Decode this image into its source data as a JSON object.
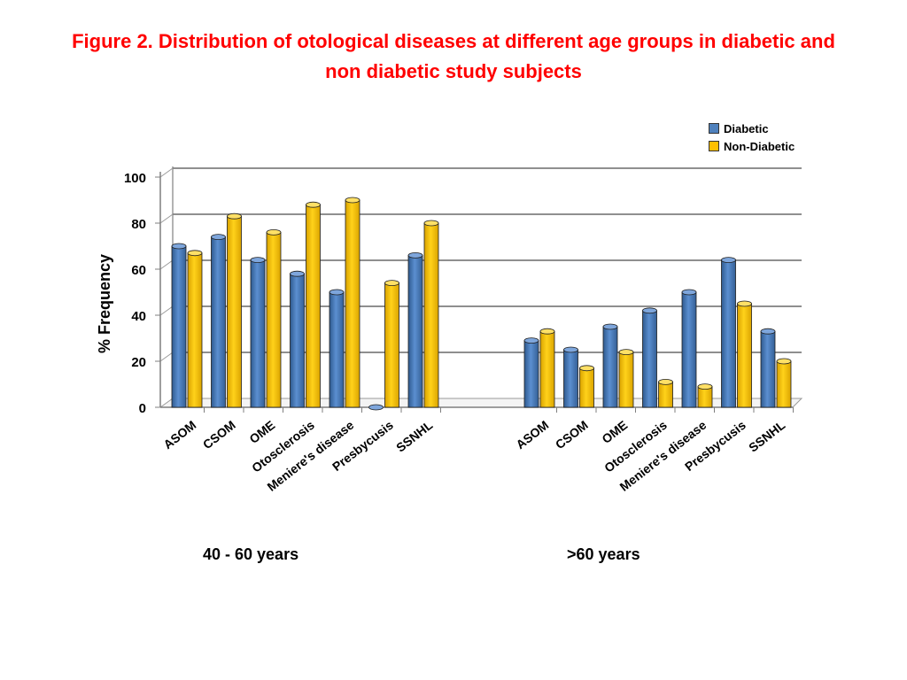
{
  "title": {
    "line1": "Figure 2. Distribution of otological diseases at different age groups in diabetic and",
    "line2": "non diabetic study subjects"
  },
  "legend": [
    {
      "label": "Diabetic",
      "color": "#4f81bd"
    },
    {
      "label": "Non-Diabetic",
      "color": "#ffc000"
    }
  ],
  "chart_data": {
    "type": "bar",
    "title": "Figure 2. Distribution of otological diseases at different age groups in diabetic and non diabetic study subjects",
    "ylabel": "% Frequency",
    "xlabel": "",
    "ylim": [
      0,
      100
    ],
    "yticks": [
      "0",
      "20",
      "40",
      "60",
      "80",
      "100"
    ],
    "grid": true,
    "legend_position": "top-right",
    "groups": [
      {
        "label": "40 - 60 years",
        "categories": [
          "ASOM",
          "CSOM",
          "OME",
          "Otosclerosis",
          "Meniere's disease",
          "Presbycusis",
          "SSNHL"
        ],
        "series": [
          {
            "name": "Diabetic",
            "values": [
              70,
              74,
              64,
              58,
              50,
              0,
              66
            ]
          },
          {
            "name": "Non-Diabetic",
            "values": [
              67,
              83,
              76,
              88,
              90,
              54,
              80
            ]
          }
        ]
      },
      {
        "label": ">60 years",
        "categories": [
          "ASOM",
          "CSOM",
          "OME",
          "Otosclerosis",
          "Meniere's disease",
          "Presbycusis",
          "SSNHL"
        ],
        "series": [
          {
            "name": "Diabetic",
            "values": [
              29,
              25,
              35,
              42,
              50,
              64,
              33
            ]
          },
          {
            "name": "Non-Diabetic",
            "values": [
              33,
              17,
              24,
              11,
              9,
              45,
              20
            ]
          }
        ]
      }
    ]
  }
}
